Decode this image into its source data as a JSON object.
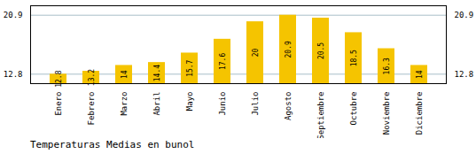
{
  "chart_data": {
    "type": "bar",
    "title": "Temperaturas Medias en bunol",
    "categories": [
      "Enero",
      "Febrero",
      "Marzo",
      "Abril",
      "Mayo",
      "Junio",
      "Julio",
      "Agosto",
      "Septiembre",
      "Octubre",
      "Noviembre",
      "Diciembre"
    ],
    "values": [
      12.8,
      13.2,
      14.0,
      14.4,
      15.7,
      17.6,
      20.0,
      20.9,
      20.5,
      18.5,
      16.3,
      14.0
    ],
    "color": "#F5C400",
    "ylim": [
      11.5,
      22.2
    ],
    "yticks": [
      12.8,
      20.9
    ],
    "grid": true,
    "data_labels": true
  }
}
